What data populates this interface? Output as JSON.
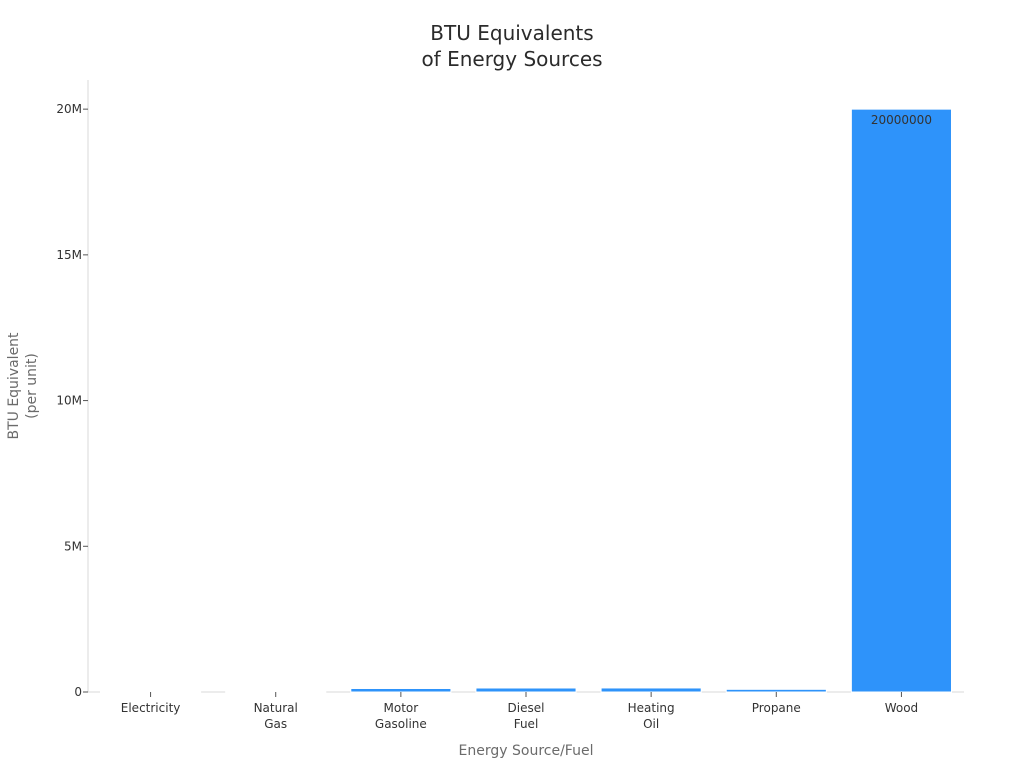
{
  "chart_data": {
    "type": "bar",
    "title": [
      "BTU Equivalents",
      "of Energy Sources"
    ],
    "xlabel": "Energy Source/Fuel",
    "ylabel": [
      "BTU Equivalent",
      "(per unit)"
    ],
    "categories": [
      [
        "Electricity"
      ],
      [
        "Natural",
        "Gas"
      ],
      [
        "Motor",
        "Gasoline"
      ],
      [
        "Diesel",
        "Fuel"
      ],
      [
        "Heating",
        "Oil"
      ],
      [
        "Propane"
      ],
      [
        "Wood"
      ]
    ],
    "values": [
      3412,
      1037,
      120286,
      137381,
      138500,
      91452,
      20000000
    ],
    "data_labels": [
      "",
      "",
      "",
      "",
      "",
      "",
      "20000000"
    ],
    "ylim": [
      0,
      21000000
    ],
    "yticks": [
      0,
      5000000,
      10000000,
      15000000,
      20000000
    ],
    "ytick_labels": [
      "0",
      "5M",
      "10M",
      "15M",
      "20M"
    ],
    "bar_color": "#2e93fa",
    "grid": false,
    "legend": "none"
  }
}
